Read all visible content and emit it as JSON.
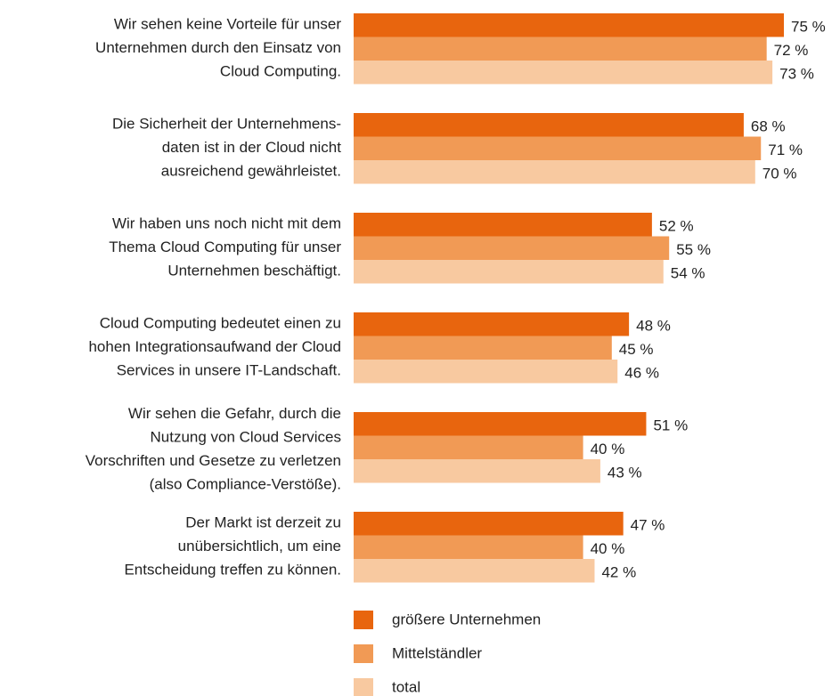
{
  "chart_data": {
    "type": "hbar",
    "categories": [
      "Wir sehen keine Vorteile für unser\nUnternehmen durch den Einsatz von\nCloud Computing.",
      "Die Sicherheit der Unternehmens-\ndaten ist in der Cloud nicht\nausreichend gewährleistet.",
      "Wir haben uns noch nicht mit dem\nThema Cloud Computing für unser\nUnternehmen beschäftigt.",
      "Cloud Computing bedeutet einen zu\nhohen Integrationsaufwand der Cloud\nServices in unsere IT-Landschaft.",
      "Wir sehen die Gefahr, durch die\nNutzung von Cloud Services\nVorschriften und Gesetze zu verletzen\n(also Compliance-Verstöße).",
      "Der Markt ist derzeit zu\nunübersichtlich, um eine\nEntscheidung treffen zu können."
    ],
    "series": [
      {
        "name": "größere Unternehmen",
        "color": "#e8650e",
        "values": [
          75,
          68,
          52,
          48,
          51,
          47
        ],
        "value_labels": [
          "75 %",
          "68 %",
          "52 %",
          "48 %",
          "51 %",
          "47 %"
        ]
      },
      {
        "name": "Mittelständler",
        "color": "#f19a55",
        "values": [
          72,
          71,
          55,
          45,
          40,
          40
        ],
        "value_labels": [
          "72 %",
          "71 %",
          "55 %",
          "45 %",
          "40 %",
          "40 %"
        ]
      },
      {
        "name": "total",
        "color": "#f8c9a0",
        "values": [
          73,
          70,
          54,
          46,
          43,
          42
        ],
        "value_labels": [
          "73 %",
          "70 %",
          "54 %",
          "46 %",
          "43 %",
          "42 %"
        ]
      }
    ],
    "legend": "bottom"
  }
}
